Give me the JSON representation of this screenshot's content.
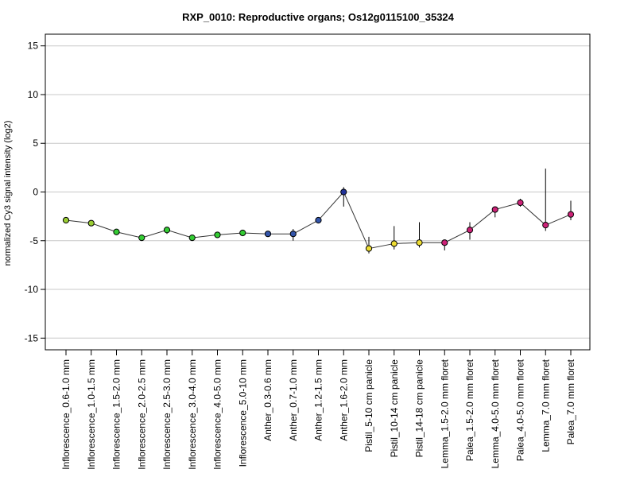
{
  "chart_data": {
    "type": "line",
    "title": "RXP_0010: Reproductive organs; Os12g0115100_35324",
    "xlabel": "",
    "ylabel": "normalized Cy3 signal intensity (log2)",
    "ylim": [
      -16.2,
      16.2
    ],
    "yticks": [
      15,
      10,
      5,
      0,
      -5,
      -10,
      -15
    ],
    "ytick_labels": [
      "15",
      "10",
      "5",
      "0",
      "-5",
      "-10",
      "-15"
    ],
    "grid": "horizontal",
    "categories": [
      "Inflorescence_0.6-1.0 mm",
      "Inflorescence_1.0-1.5 mm",
      "Inflorescence_1.5-2.0 mm",
      "Inflorescence_2.0-2.5 mm",
      "Inflorescence_2.5-3.0 mm",
      "Inflorescence_3.0-4.0 mm",
      "Inflorescence_4.0-5.0 mm",
      "Inflorescence_5.0-10 mm",
      "Anther_0.3-0.6 mm",
      "Anther_0.7-1.0 mm",
      "Anther_1.2-1.5 mm",
      "Anther_1.6-2.0 mm",
      "Pistil_5-10 cm panicle",
      "Pistil_10-14 cm panicle",
      "Pistil_14-18 cm panicle",
      "Lemma_1.5-2.0 mm floret",
      "Palea_1.5-2.0 mm floret",
      "Lemma_4.0-5.0 mm floret",
      "Palea_4.0-5.0 mm floret",
      "Lemma_7.0 mm floret",
      "Palea_7.0 mm floret"
    ],
    "values": [
      -2.9,
      -3.2,
      -4.1,
      -4.7,
      -3.9,
      -4.7,
      -4.4,
      -4.2,
      -4.3,
      -4.3,
      -2.9,
      0.0,
      -5.8,
      -5.3,
      -5.2,
      -5.2,
      -3.9,
      -1.8,
      -1.1,
      -3.4,
      -2.3
    ],
    "err_low": [
      -3.1,
      -3.4,
      -4.2,
      -4.8,
      -4.3,
      -4.9,
      -4.5,
      -4.3,
      -4.4,
      -5.0,
      -3.1,
      -1.5,
      -6.3,
      -5.9,
      -5.7,
      -6.0,
      -4.9,
      -2.6,
      -1.5,
      -4.0,
      -2.9
    ],
    "err_high": [
      -2.7,
      -3.0,
      -4.0,
      -4.6,
      -3.6,
      -4.5,
      -4.3,
      -4.1,
      -4.2,
      -3.8,
      -2.7,
      0.5,
      -4.6,
      -3.5,
      -3.1,
      -4.9,
      -3.1,
      -1.6,
      -0.7,
      2.4,
      -0.9
    ],
    "point_colors": [
      "#99cc33",
      "#99cc33",
      "#33cc33",
      "#33cc33",
      "#33cc33",
      "#33cc33",
      "#33cc33",
      "#33cc33",
      "#3355aa",
      "#3355aa",
      "#3355aa",
      "#223399",
      "#eedd33",
      "#eedd33",
      "#eedd33",
      "#cc2277",
      "#cc2277",
      "#cc2277",
      "#cc2277",
      "#cc2277",
      "#cc2277"
    ],
    "line_color": "#333333"
  }
}
